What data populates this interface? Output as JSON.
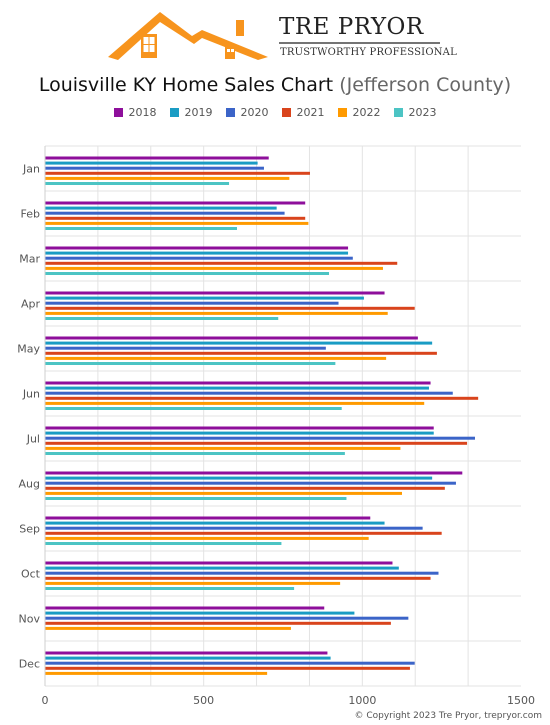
{
  "header": {
    "brand_name": "TRE PRYOR",
    "brand_tagline": "TRUSTWORTHY PROFESSIONAL",
    "title": "Louisville KY Home Sales Chart",
    "title_suffix": "(Jefferson County)"
  },
  "footer": {
    "copyright": "© Copyright 2023 Tre Pryor, trepryor.com"
  },
  "colors": {
    "logo_orange": "#f7941d",
    "grid": "#e3e3e3",
    "axis_text": "#555555"
  },
  "chart_data": {
    "type": "bar",
    "orientation": "horizontal",
    "categories": [
      "Jan",
      "Feb",
      "Mar",
      "Apr",
      "May",
      "Jun",
      "Jul",
      "Aug",
      "Sep",
      "Oct",
      "Nov",
      "Dec"
    ],
    "xlim": [
      0,
      1500
    ],
    "xticks": [
      0,
      500,
      1000,
      1500
    ],
    "grid": true,
    "legend_position": "top",
    "series": [
      {
        "name": "2018",
        "color": "#8e0f9b",
        "values": [
          705,
          820,
          955,
          1070,
          1175,
          1215,
          1225,
          1315,
          1025,
          1095,
          880,
          890
        ]
      },
      {
        "name": "2019",
        "color": "#1a9cc4",
        "values": [
          670,
          730,
          955,
          1005,
          1220,
          1210,
          1225,
          1220,
          1070,
          1115,
          975,
          900
        ]
      },
      {
        "name": "2020",
        "color": "#3b64c8",
        "values": [
          690,
          755,
          970,
          925,
          885,
          1285,
          1355,
          1295,
          1190,
          1240,
          1145,
          1165
        ]
      },
      {
        "name": "2021",
        "color": "#d9441c",
        "values": [
          835,
          820,
          1110,
          1165,
          1235,
          1365,
          1330,
          1260,
          1250,
          1215,
          1090,
          1150
        ]
      },
      {
        "name": "2022",
        "color": "#ff9a00",
        "values": [
          770,
          830,
          1065,
          1080,
          1075,
          1195,
          1120,
          1125,
          1020,
          930,
          775,
          700
        ]
      },
      {
        "name": "2023",
        "color": "#4cc4c4",
        "values": [
          580,
          605,
          895,
          735,
          915,
          935,
          945,
          950,
          745,
          785,
          null,
          null
        ]
      }
    ]
  }
}
